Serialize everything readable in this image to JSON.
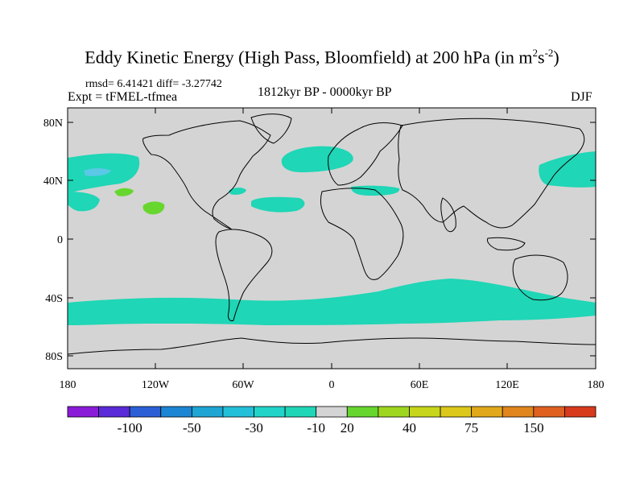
{
  "title": {
    "main": "Eddy Kinetic Energy (High Pass, Bloomfield) at 200 hPa (in m",
    "sup1": "2",
    "mid": "s",
    "sup2": "-2",
    "close": ")"
  },
  "stats": {
    "rmsd": "rmsd= 6.41421 diff= -3.27742"
  },
  "experiment": "Expt = tFMEL-tfmea",
  "period": "1812kyr BP - 0000kyr BP",
  "season": "DJF",
  "map": {
    "lat_ticks": [
      "80N",
      "40N",
      "0",
      "40S",
      "80S"
    ],
    "lon_ticks": [
      "180",
      "120W",
      "60W",
      "0",
      "60E",
      "120E",
      "180"
    ],
    "colors": {
      "background": "#d4d4d4",
      "neg_10": "#1fd6b6",
      "neg_30": "#5ac8e6",
      "pos_20": "#67d62e",
      "coast": "#000000"
    }
  },
  "colorbar": {
    "colors": [
      "#8a1bd9",
      "#5a2bd8",
      "#2a5fd6",
      "#1c86d4",
      "#1ea5d4",
      "#24bfd8",
      "#22d4c8",
      "#1fd6b6",
      "#d4d4d4",
      "#67d62e",
      "#9ed61f",
      "#c7d61a",
      "#dcc81a",
      "#e0a81a",
      "#e0861c",
      "#e06020",
      "#d83a1c"
    ],
    "labels": [
      "-100",
      "-50",
      "-30",
      "-10",
      "20",
      "40",
      "75",
      "150"
    ]
  }
}
